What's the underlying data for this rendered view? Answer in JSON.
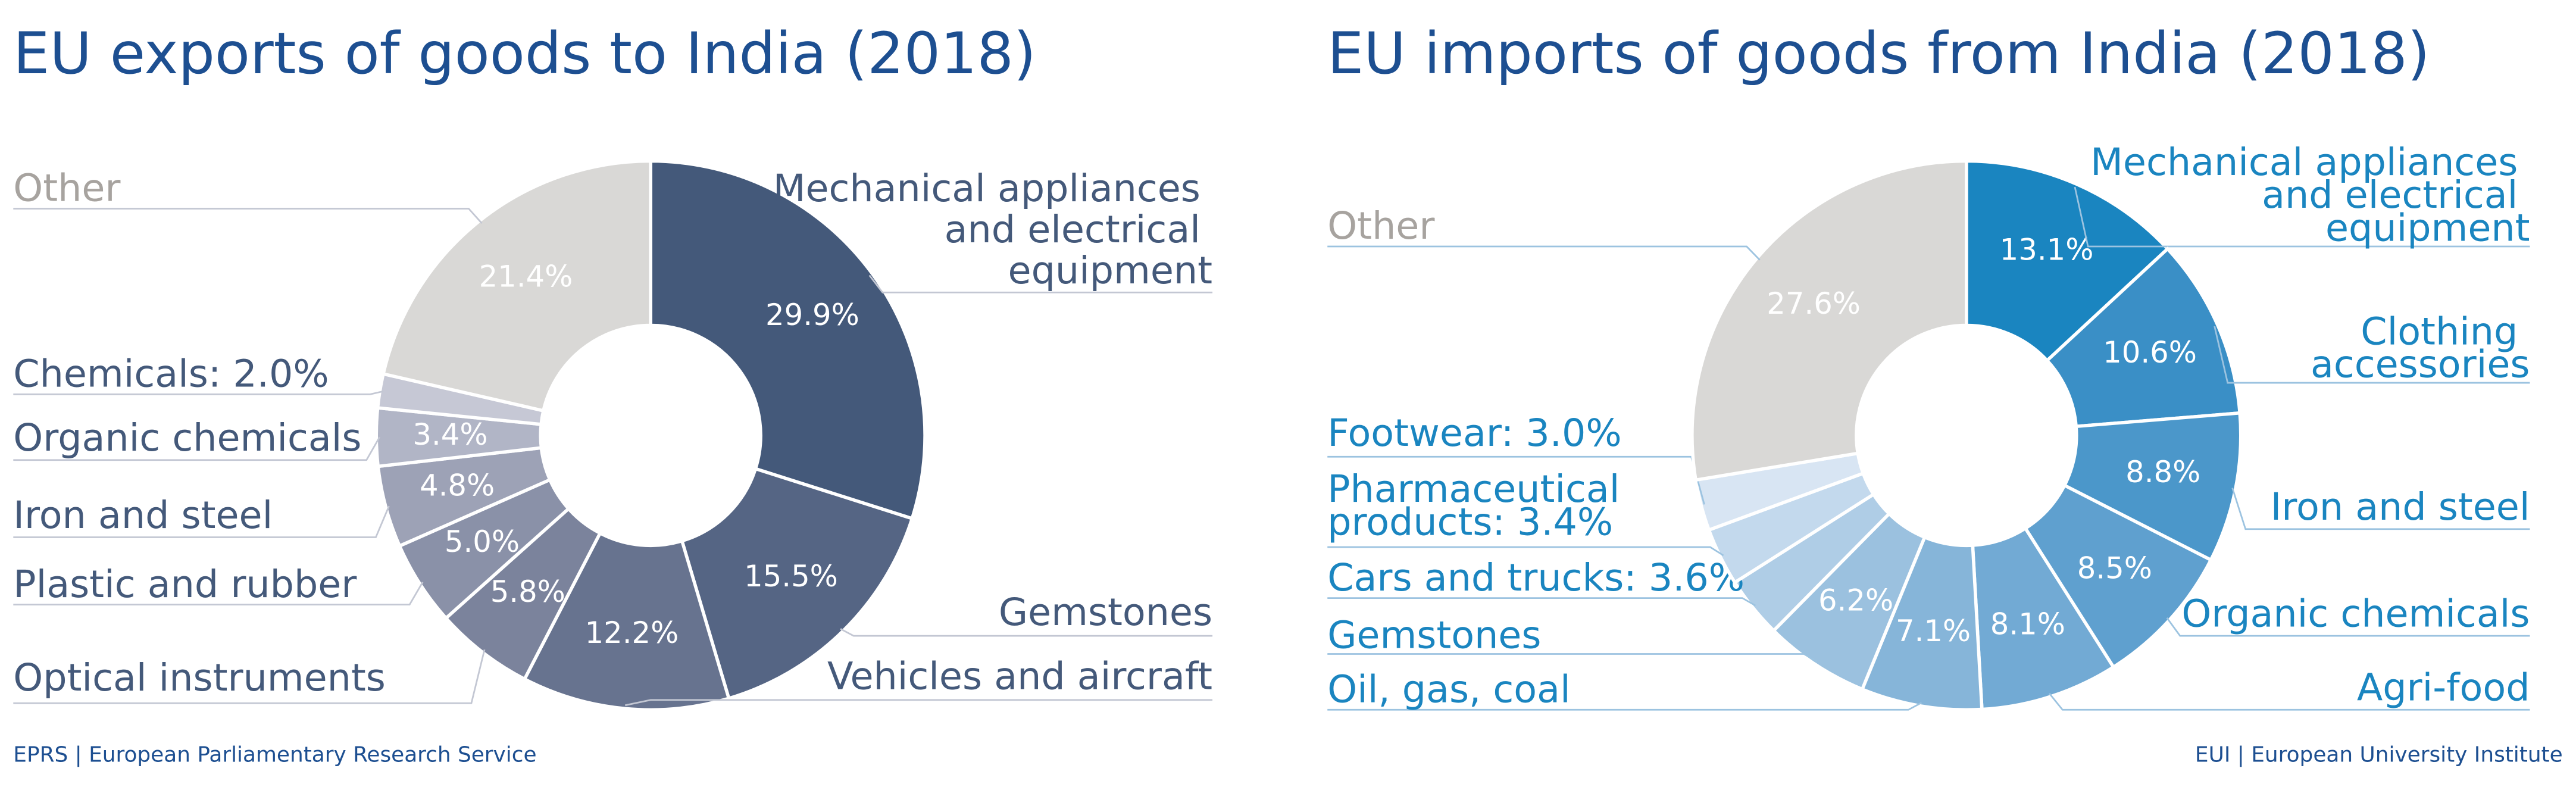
{
  "chart_data": [
    {
      "type": "donut",
      "title": "EU exports of goods to India (2018)",
      "categories": [
        "Mechanical appliances\nand electrical\nequipment",
        "Gemstones",
        "Vehicles and aircraft",
        "Optical instruments",
        "Plastic and rubber",
        "Iron and steel",
        "Organic chemicals",
        "Chemicals: 2.0%",
        "Other"
      ],
      "values": [
        29.9,
        15.5,
        12.2,
        5.8,
        5.0,
        4.8,
        3.4,
        2.0,
        21.4
      ],
      "value_labels": [
        "29.9%",
        "15.5%",
        "12.2%",
        "5.8%",
        "5.0%",
        "4.8%",
        "3.4%",
        null,
        "21.4%"
      ],
      "colors": [
        "#44597a",
        "#556584",
        "#67738f",
        "#7b839c",
        "#8a91a8",
        "#9da2b6",
        "#b1b5c6",
        "#c6c8d5",
        "#d9d8d6"
      ],
      "source": "EPRS | European Parliamentary Research Service"
    },
    {
      "type": "donut",
      "title": "EU imports of goods from India (2018)",
      "categories": [
        "Mechanical appliances\nand electrical\nequipment",
        "Clothing\naccessories",
        "Iron and steel",
        "Organic chemicals",
        "Agri-food",
        "Oil, gas, coal",
        "Gemstones",
        "Cars and trucks: 3.6%",
        "Pharmaceutical\nproducts: 3.4%",
        "Footwear: 3.0%",
        "Other"
      ],
      "values": [
        13.1,
        10.6,
        8.8,
        8.5,
        8.1,
        7.1,
        6.2,
        3.6,
        3.4,
        3.0,
        27.6
      ],
      "value_labels": [
        "13.1%",
        "10.6%",
        "8.8%",
        "8.5%",
        "8.1%",
        "7.1%",
        "6.2%",
        null,
        null,
        null,
        "27.6%"
      ],
      "colors": [
        "#1a85c0",
        "#3a8fc6",
        "#4b97ca",
        "#5fa0cf",
        "#72aad4",
        "#86b5d9",
        "#9bc1df",
        "#afcde6",
        "#c3d9ed",
        "#d8e5f3",
        "#d9d8d6"
      ],
      "source": "EUI | European University Institute"
    }
  ]
}
